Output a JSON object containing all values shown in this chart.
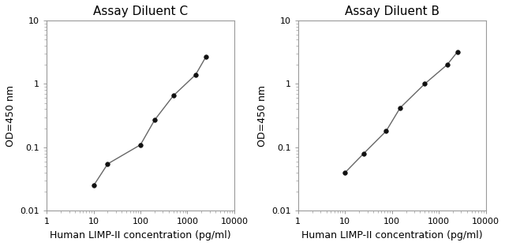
{
  "left_title": "Assay Diluent C",
  "right_title": "Assay Diluent B",
  "xlabel": "Human LIMP-II concentration (pg/ml)",
  "ylabel": "OD=450 nm",
  "left_x": [
    10,
    20,
    100,
    200,
    500,
    1500,
    2500
  ],
  "left_y": [
    0.025,
    0.055,
    0.11,
    0.27,
    0.65,
    1.4,
    2.7
  ],
  "right_x": [
    10,
    25,
    75,
    150,
    500,
    1500,
    2500
  ],
  "right_y": [
    0.04,
    0.08,
    0.18,
    0.42,
    1.0,
    2.0,
    3.2
  ],
  "xlim": [
    1,
    10000
  ],
  "ylim": [
    0.01,
    10
  ],
  "line_color": "#666666",
  "marker_color": "#111111",
  "marker_size": 4,
  "title_fontsize": 11,
  "label_fontsize": 9,
  "tick_fontsize": 8,
  "background_color": "#ffffff",
  "x_ticks": [
    1,
    10,
    100,
    1000,
    10000
  ],
  "x_tick_labels": [
    "1",
    "10",
    "100",
    "1000",
    "10000"
  ],
  "y_ticks": [
    0.01,
    0.1,
    1,
    10
  ],
  "y_tick_labels": [
    "0.01",
    "0.1",
    "1",
    "10"
  ]
}
